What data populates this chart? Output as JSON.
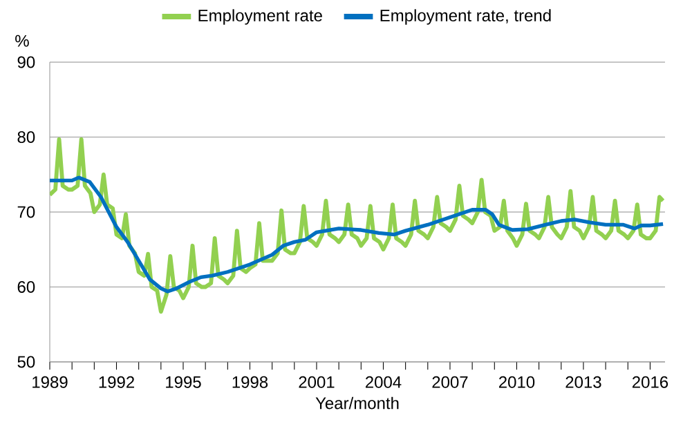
{
  "chart_data": {
    "type": "line",
    "xlabel": "Year/month",
    "ylabel": "%",
    "grid": "y",
    "legend": "top",
    "line_style": "solid",
    "marker": "none",
    "xlim": [
      1989,
      2016.67
    ],
    "ylim": [
      50,
      90
    ],
    "yticks": [
      50,
      60,
      70,
      80,
      90
    ],
    "xticks": [
      1989,
      {
        "value": 1990,
        "label": null
      },
      {
        "value": 1991,
        "label": null
      },
      1992,
      {
        "value": 1993,
        "label": null
      },
      {
        "value": 1994,
        "label": null
      },
      1995,
      {
        "value": 1996,
        "label": null
      },
      {
        "value": 1997,
        "label": null
      },
      1998,
      {
        "value": 1999,
        "label": null
      },
      {
        "value": 2000,
        "label": null
      },
      2001,
      {
        "value": 2002,
        "label": null
      },
      {
        "value": 2003,
        "label": null
      },
      2004,
      {
        "value": 2005,
        "label": null
      },
      {
        "value": 2006,
        "label": null
      },
      2007,
      {
        "value": 2008,
        "label": null
      },
      {
        "value": 2009,
        "label": null
      },
      2010,
      {
        "value": 2011,
        "label": null
      },
      {
        "value": 2012,
        "label": null
      },
      2013,
      {
        "value": 2014,
        "label": null
      },
      {
        "value": 2015,
        "label": null
      },
      2016
    ],
    "series": [
      {
        "name": "Employment rate",
        "color": "#92d050",
        "x": [
          1989,
          1989.25,
          1989.42,
          1989.58,
          1989.83,
          1990,
          1990.25,
          1990.42,
          1990.58,
          1990.83,
          1991,
          1991.25,
          1991.42,
          1991.58,
          1991.83,
          1992,
          1992.25,
          1992.42,
          1992.58,
          1992.83,
          1993,
          1993.25,
          1993.42,
          1993.58,
          1993.83,
          1994,
          1994.25,
          1994.42,
          1994.58,
          1994.83,
          1995,
          1995.25,
          1995.42,
          1995.58,
          1995.83,
          1996,
          1996.25,
          1996.42,
          1996.58,
          1996.83,
          1997,
          1997.25,
          1997.42,
          1997.58,
          1997.83,
          1998,
          1998.25,
          1998.42,
          1998.58,
          1998.83,
          1999,
          1999.25,
          1999.42,
          1999.58,
          1999.83,
          2000,
          2000.25,
          2000.42,
          2000.58,
          2000.83,
          2001,
          2001.25,
          2001.42,
          2001.58,
          2001.83,
          2002,
          2002.25,
          2002.42,
          2002.58,
          2002.83,
          2003,
          2003.25,
          2003.42,
          2003.58,
          2003.83,
          2004,
          2004.25,
          2004.42,
          2004.58,
          2004.83,
          2005,
          2005.25,
          2005.42,
          2005.58,
          2005.83,
          2006,
          2006.25,
          2006.42,
          2006.58,
          2006.83,
          2007,
          2007.25,
          2007.42,
          2007.58,
          2007.83,
          2008,
          2008.25,
          2008.42,
          2008.58,
          2008.83,
          2009,
          2009.25,
          2009.42,
          2009.58,
          2009.83,
          2010,
          2010.25,
          2010.42,
          2010.58,
          2010.83,
          2011,
          2011.25,
          2011.42,
          2011.58,
          2011.83,
          2012,
          2012.25,
          2012.42,
          2012.58,
          2012.83,
          2013,
          2013.25,
          2013.42,
          2013.58,
          2013.83,
          2014,
          2014.25,
          2014.42,
          2014.58,
          2014.83,
          2015,
          2015.25,
          2015.42,
          2015.58,
          2015.83,
          2016,
          2016.25,
          2016.42,
          2016.58
        ],
        "values": [
          72.3,
          73,
          79.7,
          73.5,
          73,
          73,
          73.5,
          79.7,
          73.5,
          72.5,
          70,
          71,
          75,
          71,
          70.5,
          67,
          66.5,
          69.7,
          65.5,
          64.5,
          62,
          61.5,
          64.4,
          60,
          59.5,
          56.7,
          59,
          64.1,
          60,
          59.5,
          58.5,
          60,
          65.5,
          60.5,
          60,
          60,
          60.5,
          66.5,
          61.5,
          61,
          60.5,
          61.5,
          67.5,
          62.5,
          62,
          62.5,
          63,
          68.5,
          63.5,
          63.5,
          63.5,
          64.5,
          70.2,
          65,
          64.5,
          64.5,
          66,
          70.8,
          66.5,
          66,
          65.5,
          67,
          71.5,
          67,
          66.5,
          66,
          67,
          71,
          67,
          66.5,
          65.5,
          66.5,
          70.8,
          66.5,
          66,
          65,
          66.5,
          71,
          66.5,
          66,
          65.5,
          67,
          71.5,
          67.5,
          67,
          66.5,
          68,
          72,
          68.5,
          68,
          67.5,
          69,
          73.5,
          69.5,
          69,
          68.5,
          70,
          74.3,
          70,
          69.5,
          67.5,
          68,
          71.5,
          67.5,
          66.5,
          65.5,
          67,
          71.1,
          67.5,
          67,
          66.5,
          68,
          72,
          68,
          67,
          66.5,
          68,
          72.8,
          68,
          67.5,
          66.5,
          68,
          72,
          67.5,
          67,
          66.5,
          67.5,
          71.5,
          67.5,
          67,
          66.5,
          67.5,
          71,
          67,
          66.5,
          66.5,
          67.5,
          72,
          71.5
        ]
      },
      {
        "name": "Employment rate, trend",
        "color": "#0070c0",
        "x": [
          1989,
          1990,
          1990.3,
          1990.8,
          1991.3,
          1992,
          1992.5,
          1993,
          1993.5,
          1994,
          1994.3,
          1994.7,
          1995.3,
          1995.8,
          1996.3,
          1997,
          1998,
          1999,
          1999.5,
          2000,
          2000.5,
          2001,
          2002,
          2003,
          2003.8,
          2004.5,
          2005,
          2006,
          2007,
          2007.5,
          2008,
          2008.6,
          2008.9,
          2009.2,
          2009.8,
          2010.5,
          2011.3,
          2012,
          2012.6,
          2013.3,
          2014,
          2014.8,
          2015.3,
          2015.6,
          2016,
          2016.58
        ],
        "values": [
          74.2,
          74.2,
          74.6,
          74,
          72,
          68,
          66,
          63.5,
          61,
          59.8,
          59.4,
          59.8,
          60.7,
          61.3,
          61.5,
          62,
          63,
          64.3,
          65.5,
          66,
          66.3,
          67.3,
          67.8,
          67.6,
          67.2,
          67,
          67.5,
          68.3,
          69.3,
          69.8,
          70.3,
          70.3,
          69.7,
          68.3,
          67.6,
          67.7,
          68.3,
          68.8,
          69,
          68.6,
          68.3,
          68.3,
          67.8,
          68.2,
          68.2,
          68.4
        ]
      }
    ]
  }
}
